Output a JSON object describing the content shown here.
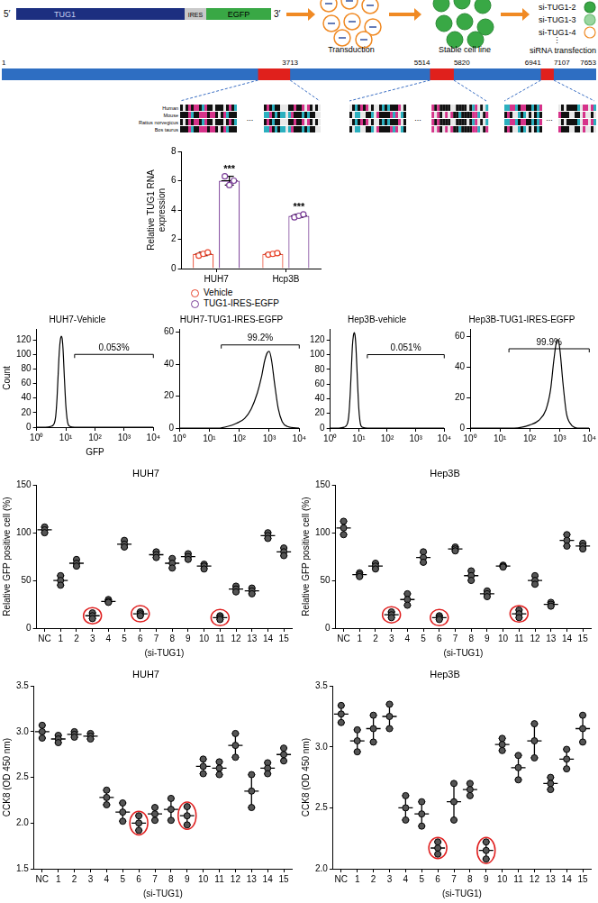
{
  "diagram": {
    "construct": {
      "five_prime": "5′",
      "gene": "TUG1",
      "ires": "IRES",
      "reporter": "EGFP",
      "three_prime": "3′"
    },
    "steps": [
      "Transduction",
      "Stable cell line",
      "siRNA transfection"
    ],
    "sirnas": [
      "si-TUG1-2",
      "si-TUG1-3",
      "si-TUG1-4"
    ],
    "more": "⋮"
  },
  "gene_map": {
    "range": [
      1,
      7653
    ],
    "regions": [
      {
        "range": [
          3300,
          3713
        ],
        "labels": [
          3713
        ]
      },
      {
        "range": [
          5514,
          5820
        ],
        "labels": [
          5514,
          5820
        ]
      },
      {
        "range": [
          6941,
          7107
        ],
        "labels": [
          6941,
          7107
        ]
      }
    ],
    "species": [
      "Human",
      "Mouse",
      "Rattus norvegicus",
      "Bos taurus"
    ],
    "ellipsis": "..."
  },
  "chart_data": [
    {
      "type": "bar",
      "categories": [
        "HUH7",
        "Hcp3B"
      ],
      "y_label": [
        "Relative TUG1 RNA",
        "expression"
      ],
      "ylim": [
        0,
        8
      ],
      "yticks": [
        0,
        2,
        4,
        6,
        8
      ],
      "grid": false,
      "legend": "bottom",
      "series": [
        {
          "name": "Vehicle",
          "color": "#e8452c",
          "values": [
            1.0,
            1.0
          ],
          "errors": [
            0.11,
            0.05
          ],
          "points": [
            [
              0.88,
              1.0,
              1.1
            ],
            [
              0.95,
              1.0,
              1.05
            ]
          ]
        },
        {
          "name": "TUG1-IRES-EGFP",
          "color": "#7b3f98",
          "values": [
            6.0,
            3.6
          ],
          "errors": [
            0.3,
            0.1
          ],
          "points": [
            [
              6.3,
              5.7,
              6.0
            ],
            [
              3.5,
              3.6,
              3.7
            ]
          ]
        }
      ],
      "annotations": [
        {
          "text": "***",
          "category": "HUH7",
          "series": "TUG1-IRES-EGFP"
        },
        {
          "text": "***",
          "category": "Hcp3B",
          "series": "TUG1-IRES-EGFP"
        }
      ]
    },
    {
      "type": "line",
      "title": "HUH7-Vehicle",
      "x_label": "GFP",
      "y_label": "Count",
      "log": "x",
      "grid": false,
      "color": "#000000",
      "x": [
        1,
        2,
        3,
        4,
        4.5,
        5,
        5.5,
        6,
        6.5,
        7,
        7.5,
        8,
        9,
        10,
        11,
        12,
        14,
        20,
        10000
      ],
      "values": [
        0,
        0,
        1,
        5,
        15,
        40,
        75,
        105,
        120,
        125,
        122,
        108,
        65,
        30,
        12,
        4,
        1,
        0,
        0
      ],
      "xlim": [
        1,
        10000
      ],
      "xticks": [
        {
          "value": 1,
          "label": "10⁰"
        },
        {
          "value": 10,
          "label": "10¹"
        },
        {
          "value": 100,
          "label": "10²"
        },
        {
          "value": 1000,
          "label": "10³"
        },
        {
          "value": 10000,
          "label": "10⁴"
        }
      ],
      "ylim": [
        0,
        135
      ],
      "yticks": [
        0,
        20,
        40,
        60,
        80,
        100,
        120
      ],
      "gate": {
        "x": [
          20,
          10000
        ],
        "y": 100,
        "label": "0.053%"
      }
    },
    {
      "type": "line",
      "title": "HUH7-TUG1-IRES-EGFP",
      "log": "x",
      "grid": false,
      "color": "#000000",
      "x": [
        1,
        20,
        40,
        80,
        150,
        250,
        400,
        550,
        700,
        850,
        1000,
        1200,
        1500,
        2000,
        2700,
        4000,
        10000
      ],
      "values": [
        0,
        0,
        1,
        3,
        6,
        12,
        22,
        32,
        42,
        47,
        48,
        42,
        28,
        12,
        4,
        1,
        0
      ],
      "xlim": [
        1,
        10000
      ],
      "xticks": [
        {
          "value": 1,
          "label": "10⁰"
        },
        {
          "value": 10,
          "label": "10¹"
        },
        {
          "value": 100,
          "label": "10²"
        },
        {
          "value": 1000,
          "label": "10³"
        },
        {
          "value": 10000,
          "label": "10⁴"
        }
      ],
      "ylim": [
        0,
        62
      ],
      "yticks": [
        0,
        20,
        40,
        60
      ],
      "gate": {
        "x": [
          25,
          10000
        ],
        "y": 52,
        "label": "99.2%"
      }
    },
    {
      "type": "line",
      "title": "Hep3B-vehicle",
      "log": "x",
      "grid": false,
      "color": "#000000",
      "x": [
        1,
        2,
        3,
        4,
        4.5,
        5,
        5.5,
        6,
        6.5,
        7,
        7.5,
        8,
        9,
        10,
        11,
        12,
        14,
        20,
        10000
      ],
      "values": [
        0,
        0,
        1,
        6,
        18,
        45,
        80,
        112,
        126,
        130,
        125,
        110,
        65,
        28,
        10,
        3,
        1,
        0,
        0
      ],
      "xlim": [
        1,
        10000
      ],
      "xticks": [
        {
          "value": 1,
          "label": "10⁰"
        },
        {
          "value": 10,
          "label": "10¹"
        },
        {
          "value": 100,
          "label": "10²"
        },
        {
          "value": 1000,
          "label": "10³"
        },
        {
          "value": 10000,
          "label": "10⁴"
        }
      ],
      "ylim": [
        0,
        135
      ],
      "yticks": [
        0,
        20,
        40,
        60,
        80,
        100,
        120
      ],
      "gate": {
        "x": [
          20,
          10000
        ],
        "y": 100,
        "label": "0.051%"
      }
    },
    {
      "type": "line",
      "title": "Hep3B-TUG1-IRES-EGFP",
      "log": "x",
      "grid": false,
      "color": "#000000",
      "x": [
        1,
        30,
        100,
        200,
        350,
        500,
        650,
        800,
        900,
        1050,
        1300,
        1700,
        2300,
        4000,
        10000
      ],
      "values": [
        0,
        0,
        2,
        5,
        12,
        25,
        45,
        57,
        58,
        50,
        30,
        10,
        3,
        0,
        0
      ],
      "xlim": [
        1,
        10000
      ],
      "xticks": [
        {
          "value": 1,
          "label": "10⁰"
        },
        {
          "value": 10,
          "label": "10¹"
        },
        {
          "value": 100,
          "label": "10²"
        },
        {
          "value": 1000,
          "label": "10³"
        },
        {
          "value": 10000,
          "label": "10⁴"
        }
      ],
      "ylim": [
        0,
        65
      ],
      "yticks": [
        0,
        20,
        40,
        60
      ],
      "gate": {
        "x": [
          20,
          10000
        ],
        "y": 52,
        "label": "99.9%"
      }
    },
    {
      "type": "scatter",
      "title": "HUH7",
      "x_label": "(si-TUG1)",
      "y_label": "Relative GFP positive cell (%)",
      "grid": false,
      "marker": "circle",
      "color": "#555555",
      "categories": [
        "NC",
        "1",
        "2",
        "3",
        "4",
        "5",
        "6",
        "7",
        "8",
        "9",
        "10",
        "11",
        "12",
        "13",
        "14",
        "15"
      ],
      "values": [
        103,
        50,
        68,
        13,
        28,
        88,
        15,
        77,
        68,
        75,
        65,
        11,
        41,
        39,
        97,
        80
      ],
      "errors": [
        3,
        5,
        3.5,
        3,
        1.5,
        3.5,
        2,
        3,
        5,
        3,
        2.5,
        2,
        3,
        3,
        3,
        4
      ],
      "points": [
        [
          100,
          103,
          106
        ],
        [
          45,
          50,
          55
        ],
        [
          65,
          68,
          72
        ],
        [
          10,
          13,
          16
        ],
        [
          27,
          28,
          30
        ],
        [
          85,
          88,
          92
        ],
        [
          13,
          15,
          17
        ],
        [
          74,
          77,
          80
        ],
        [
          63,
          68,
          73
        ],
        [
          72,
          75,
          78
        ],
        [
          62,
          65,
          67
        ],
        [
          9,
          11,
          13
        ],
        [
          38,
          41,
          44
        ],
        [
          36,
          39,
          42
        ],
        [
          94,
          97,
          100
        ],
        [
          76,
          80,
          84
        ]
      ],
      "highlighted": [
        "3",
        "6",
        "11"
      ],
      "ylim": [
        0,
        150
      ],
      "yticks": [
        0,
        50,
        100,
        150
      ]
    },
    {
      "type": "scatter",
      "title": "Hep3B",
      "x_label": "(si-TUG1)",
      "y_label": "Relative GFP positive cell (%)",
      "grid": false,
      "marker": "circle",
      "color": "#555555",
      "categories": [
        "NC",
        "1",
        "2",
        "3",
        "4",
        "5",
        "6",
        "7",
        "8",
        "9",
        "10",
        "11",
        "12",
        "13",
        "14",
        "15"
      ],
      "values": [
        105,
        56,
        65,
        14,
        30,
        74,
        11,
        83,
        55,
        36,
        65,
        15,
        50,
        25,
        92,
        86
      ],
      "errors": [
        7,
        2,
        3,
        3,
        6,
        5.5,
        2,
        2,
        5,
        3,
        1,
        4,
        4.5,
        2,
        6,
        3
      ],
      "points": [
        [
          98,
          105,
          112
        ],
        [
          54,
          56,
          58
        ],
        [
          62,
          65,
          68
        ],
        [
          11,
          14,
          17
        ],
        [
          24,
          30,
          36
        ],
        [
          69,
          74,
          80
        ],
        [
          9,
          11,
          13
        ],
        [
          81,
          83,
          85
        ],
        [
          50,
          55,
          60
        ],
        [
          33,
          36,
          39
        ],
        [
          64,
          65,
          66
        ],
        [
          11,
          15,
          19
        ],
        [
          46,
          50,
          55
        ],
        [
          23,
          25,
          27
        ],
        [
          86,
          92,
          98
        ],
        [
          83,
          86,
          89
        ]
      ],
      "highlighted": [
        "3",
        "6",
        "11"
      ],
      "ylim": [
        0,
        150
      ],
      "yticks": [
        0,
        50,
        100,
        150
      ]
    },
    {
      "type": "scatter",
      "title": "HUH7",
      "x_label": "(si-TUG1)",
      "y_label": "CCK8 (OD 450 nm)",
      "grid": false,
      "marker": "circle",
      "color": "#555555",
      "categories": [
        "NC",
        "1",
        "2",
        "3",
        "4",
        "5",
        "6",
        "7",
        "8",
        "9",
        "10",
        "11",
        "12",
        "13",
        "14",
        "15"
      ],
      "values": [
        3.0,
        2.92,
        2.97,
        2.95,
        2.28,
        2.12,
        2.0,
        2.1,
        2.15,
        2.08,
        2.62,
        2.6,
        2.85,
        2.35,
        2.6,
        2.75
      ],
      "errors": [
        0.07,
        0.04,
        0.03,
        0.03,
        0.08,
        0.1,
        0.08,
        0.07,
        0.12,
        0.1,
        0.08,
        0.07,
        0.13,
        0.18,
        0.06,
        0.07
      ],
      "points": [
        [
          2.93,
          3.0,
          3.07
        ],
        [
          2.88,
          2.92,
          2.96
        ],
        [
          2.94,
          2.97,
          3.0
        ],
        [
          2.92,
          2.95,
          2.98
        ],
        [
          2.2,
          2.28,
          2.36
        ],
        [
          2.02,
          2.12,
          2.22
        ],
        [
          1.92,
          2.0,
          2.08
        ],
        [
          2.03,
          2.1,
          2.17
        ],
        [
          2.03,
          2.15,
          2.27
        ],
        [
          1.98,
          2.08,
          2.18
        ],
        [
          2.54,
          2.62,
          2.7
        ],
        [
          2.53,
          2.6,
          2.67
        ],
        [
          2.72,
          2.85,
          2.98
        ],
        [
          2.17,
          2.35,
          2.53
        ],
        [
          2.54,
          2.6,
          2.66
        ],
        [
          2.68,
          2.75,
          2.82
        ]
      ],
      "highlighted": [
        "6",
        "9"
      ],
      "ylim": [
        1.5,
        3.5
      ],
      "yticks": [
        1.5,
        {
          "value": 2,
          "label": "2.0"
        },
        2.5,
        {
          "value": 3,
          "label": "3.0"
        },
        3.5
      ]
    },
    {
      "type": "scatter",
      "title": "Hep3B",
      "x_label": "(si-TUG1)",
      "y_label": "CCK8 (OD 450 nm)",
      "grid": false,
      "marker": "circle",
      "color": "#555555",
      "categories": [
        "NC",
        "1",
        "2",
        "3",
        "4",
        "5",
        "6",
        "7",
        "8",
        "9",
        "10",
        "11",
        "12",
        "13",
        "14",
        "15"
      ],
      "values": [
        3.27,
        3.05,
        3.15,
        3.25,
        2.5,
        2.45,
        2.17,
        2.55,
        2.65,
        2.15,
        3.02,
        2.83,
        3.05,
        2.7,
        2.9,
        3.15
      ],
      "errors": [
        0.07,
        0.09,
        0.11,
        0.1,
        0.1,
        0.1,
        0.05,
        0.15,
        0.05,
        0.07,
        0.05,
        0.1,
        0.14,
        0.05,
        0.08,
        0.11
      ],
      "points": [
        [
          3.2,
          3.27,
          3.34
        ],
        [
          2.96,
          3.05,
          3.14
        ],
        [
          3.04,
          3.15,
          3.26
        ],
        [
          3.15,
          3.25,
          3.35
        ],
        [
          2.4,
          2.5,
          2.6
        ],
        [
          2.35,
          2.45,
          2.55
        ],
        [
          2.12,
          2.17,
          2.22
        ],
        [
          2.4,
          2.55,
          2.7
        ],
        [
          2.6,
          2.65,
          2.7
        ],
        [
          2.08,
          2.15,
          2.22
        ],
        [
          2.97,
          3.02,
          3.07
        ],
        [
          2.73,
          2.83,
          2.93
        ],
        [
          2.91,
          3.05,
          3.19
        ],
        [
          2.65,
          2.7,
          2.75
        ],
        [
          2.82,
          2.9,
          2.98
        ],
        [
          3.04,
          3.15,
          3.26
        ]
      ],
      "highlighted": [
        "6",
        "9"
      ],
      "ylim": [
        2,
        3.5
      ],
      "yticks": [
        {
          "value": 2,
          "label": "2.0"
        },
        2.5,
        {
          "value": 3,
          "label": "3.0"
        },
        3.5
      ]
    }
  ]
}
